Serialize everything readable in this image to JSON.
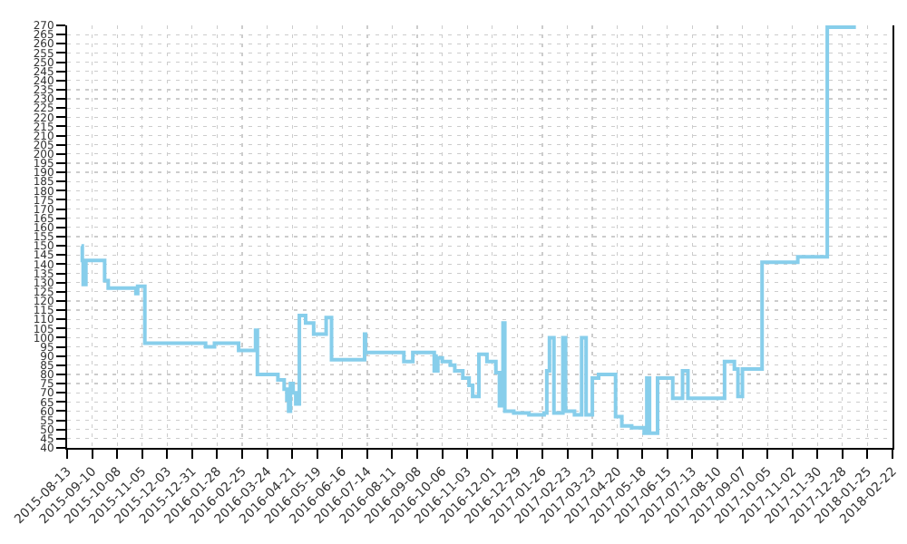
{
  "chart_data": {
    "type": "step",
    "color": "#87ceeb",
    "grid": true,
    "marker": "none",
    "line_style": "solid",
    "x": [
      "2015-08-29",
      "2015-08-30",
      "2015-08-31",
      "2015-09-03",
      "2015-09-24",
      "2015-09-28",
      "2015-10-29",
      "2015-10-31",
      "2015-11-08",
      "2016-01-15",
      "2016-01-25",
      "2016-02-21",
      "2016-03-11",
      "2016-03-13",
      "2016-04-05",
      "2016-04-12",
      "2016-04-15",
      "2016-04-17",
      "2016-04-19",
      "2016-04-22",
      "2016-04-25",
      "2016-04-29",
      "2016-05-06",
      "2016-05-15",
      "2016-05-29",
      "2016-06-04",
      "2016-07-11",
      "2016-07-12",
      "2016-08-24",
      "2016-09-03",
      "2016-09-27",
      "2016-09-28",
      "2016-09-29",
      "2016-10-01",
      "2016-10-06",
      "2016-10-15",
      "2016-10-20",
      "2016-10-29",
      "2016-11-05",
      "2016-11-09",
      "2016-11-16",
      "2016-11-25",
      "2016-12-05",
      "2016-12-09",
      "2016-12-13",
      "2016-12-15",
      "2016-12-25",
      "2017-01-11",
      "2017-01-28",
      "2017-01-31",
      "2017-02-03",
      "2017-02-08",
      "2017-02-18",
      "2017-02-21",
      "2017-03-03",
      "2017-03-11",
      "2017-03-16",
      "2017-03-23",
      "2017-03-30",
      "2017-04-18",
      "2017-04-25",
      "2017-05-06",
      "2017-05-20",
      "2017-05-23",
      "2017-05-26",
      "2017-06-04",
      "2017-06-21",
      "2017-07-02",
      "2017-07-08",
      "2017-08-18",
      "2017-08-29",
      "2017-09-02",
      "2017-09-07",
      "2017-09-29",
      "2017-11-08",
      "2017-12-11",
      "2018-01-12"
    ],
    "values": [
      150,
      142,
      129,
      142,
      131,
      127,
      124,
      128,
      97,
      95,
      97,
      93,
      104,
      80,
      77,
      72,
      66,
      60,
      75,
      70,
      64,
      112,
      108,
      102,
      111,
      88,
      102,
      92,
      87,
      92,
      82,
      90,
      82,
      89,
      87,
      85,
      82,
      78,
      74,
      68,
      91,
      87,
      81,
      63,
      108,
      60,
      59,
      58,
      59,
      82,
      100,
      59,
      100,
      60,
      58,
      100,
      58,
      78,
      80,
      57,
      52,
      51,
      48,
      78,
      48,
      78,
      67,
      82,
      67,
      87,
      83,
      68,
      83,
      141,
      144,
      269,
      269
    ],
    "xlim": [
      "2015-08-13",
      "2018-02-22"
    ],
    "xticks": [
      "2015-08-13",
      "2015-09-10",
      "2015-10-08",
      "2015-11-05",
      "2015-12-03",
      "2015-12-31",
      "2016-01-28",
      "2016-02-25",
      "2016-03-24",
      "2016-04-21",
      "2016-05-19",
      "2016-06-16",
      "2016-07-14",
      "2016-08-11",
      "2016-09-08",
      "2016-10-06",
      "2016-11-03",
      "2016-12-01",
      "2016-12-29",
      "2017-01-26",
      "2017-02-23",
      "2017-03-23",
      "2017-04-20",
      "2017-05-18",
      "2017-06-15",
      "2017-07-13",
      "2017-08-10",
      "2017-09-07",
      "2017-10-05",
      "2017-11-02",
      "2017-11-30",
      "2017-12-28",
      "2018-01-25",
      "2018-02-22"
    ],
    "ylim": [
      40,
      270
    ],
    "yticks": [
      40,
      45,
      50,
      55,
      60,
      65,
      70,
      75,
      80,
      85,
      90,
      95,
      100,
      105,
      110,
      115,
      120,
      125,
      130,
      135,
      140,
      145,
      150,
      155,
      160,
      165,
      170,
      175,
      180,
      185,
      190,
      195,
      200,
      205,
      210,
      215,
      220,
      225,
      230,
      235,
      240,
      245,
      250,
      255,
      260,
      265,
      270
    ]
  }
}
